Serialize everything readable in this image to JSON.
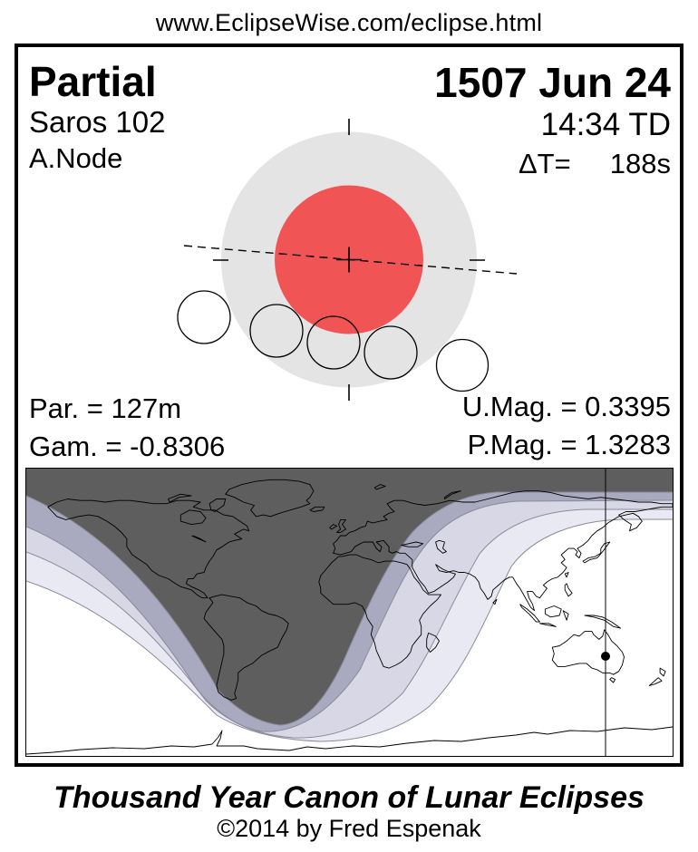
{
  "page": {
    "url": "www.EclipseWise.com/eclipse.html"
  },
  "card": {
    "eclipse_type": "Partial",
    "saros": "Saros 102",
    "node": "A.Node",
    "date": "1507 Jun 24",
    "time": "14:34 TD",
    "delta_t": "ΔT=     188s",
    "par": "Par. = 127m",
    "gam": "Gam. = -0.8306",
    "umag": "U.Mag. = 0.3395",
    "pmag": "P.Mag. = 1.3283"
  },
  "footer": {
    "title": "Thousand Year Canon of Lunar Eclipses",
    "copyright": "©2014 by Fred Espenak"
  },
  "colors": {
    "penumbra": "#e4e4e4",
    "umbra": "#f15454",
    "map_dark": "#5e5e5e",
    "map_medium": "#a9a9bf",
    "map_light": "#d7d7e5",
    "map_lighter": "#e9e9f3",
    "map_boundary_line": "#8a8a99"
  }
}
